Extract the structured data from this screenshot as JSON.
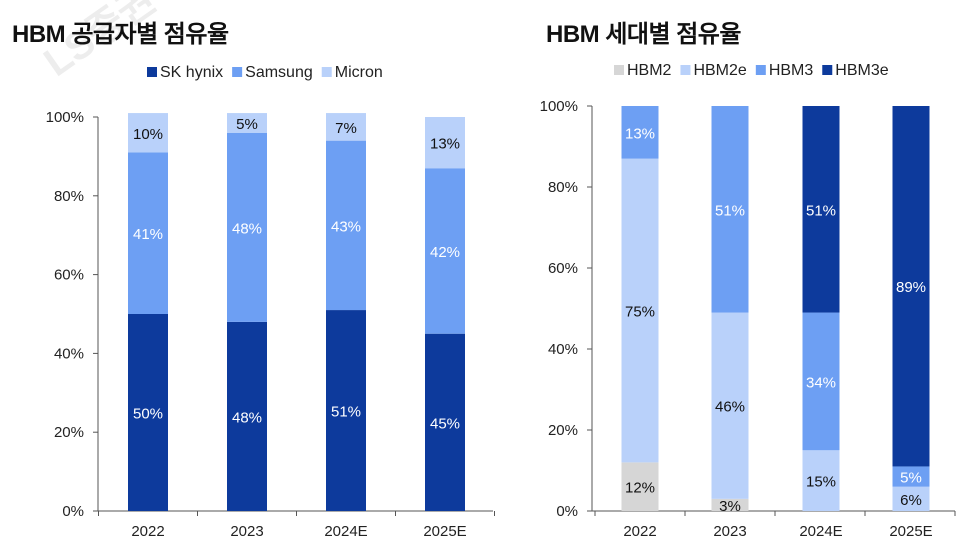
{
  "watermark": "LS증권",
  "chart_data": [
    {
      "type": "bar",
      "stacked": true,
      "title": "HBM 공급자별 점유율",
      "categories": [
        "2022",
        "2023",
        "2024E",
        "2025E"
      ],
      "ylim": [
        0,
        100
      ],
      "yticks": [
        "0%",
        "20%",
        "40%",
        "60%",
        "80%",
        "100%"
      ],
      "series": [
        {
          "name": "SK hynix",
          "color": "#0d3a9c",
          "label_color": "#ffffff",
          "values": [
            50,
            48,
            51,
            45
          ],
          "labels": [
            "50%",
            "48%",
            "51%",
            "45%"
          ]
        },
        {
          "name": "Samsung",
          "color": "#6d9ff3",
          "label_color": "#ffffff",
          "values": [
            41,
            48,
            43,
            42
          ],
          "labels": [
            "41%",
            "48%",
            "43%",
            "42%"
          ]
        },
        {
          "name": "Micron",
          "color": "#b9d1fa",
          "label_color": "#111111",
          "values": [
            10,
            5,
            7,
            13
          ],
          "labels": [
            "10%",
            "5%",
            "7%",
            "13%"
          ]
        }
      ]
    },
    {
      "type": "bar",
      "stacked": true,
      "title": "HBM 세대별 점유율",
      "categories": [
        "2022",
        "2023",
        "2024E",
        "2025E"
      ],
      "ylim": [
        0,
        100
      ],
      "yticks": [
        "0%",
        "20%",
        "40%",
        "60%",
        "80%",
        "100%"
      ],
      "series": [
        {
          "name": "HBM2",
          "color": "#d6d6d6",
          "label_color": "#111111",
          "values": [
            12,
            3,
            0,
            0
          ],
          "labels": [
            "12%",
            "3%",
            "",
            ""
          ]
        },
        {
          "name": "HBM2e",
          "color": "#b9d1fa",
          "label_color": "#111111",
          "values": [
            75,
            46,
            15,
            6
          ],
          "labels": [
            "75%",
            "46%",
            "15%",
            "6%"
          ]
        },
        {
          "name": "HBM3",
          "color": "#6d9ff3",
          "label_color": "#ffffff",
          "values": [
            13,
            51,
            34,
            5
          ],
          "labels": [
            "13%",
            "51%",
            "34%",
            "5%"
          ]
        },
        {
          "name": "HBM3e",
          "color": "#0d3a9c",
          "label_color": "#ffffff",
          "values": [
            0,
            0,
            51,
            89
          ],
          "labels": [
            "",
            "",
            "51%",
            "89%"
          ]
        }
      ]
    }
  ]
}
